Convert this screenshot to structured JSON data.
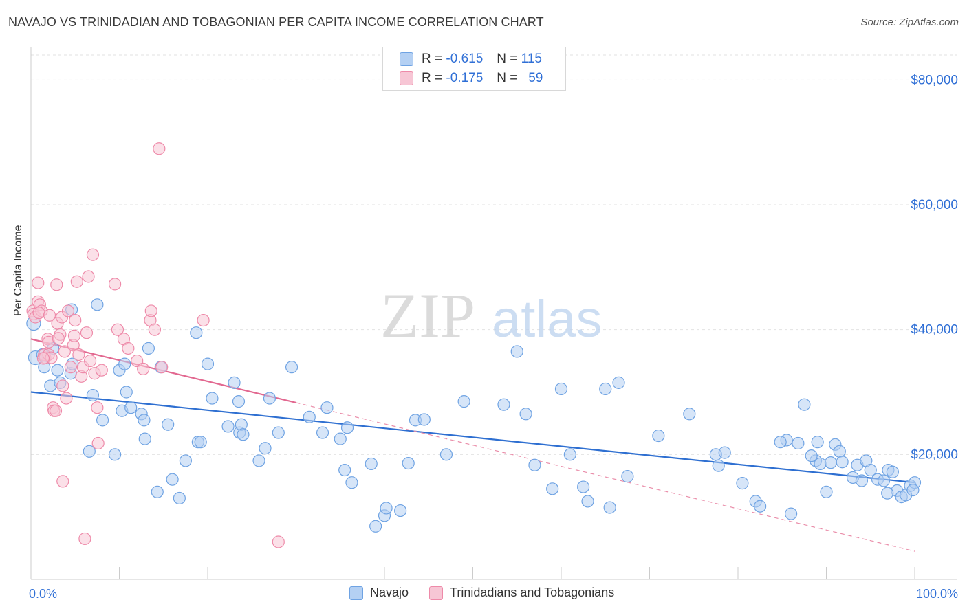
{
  "title": "NAVAJO VS TRINIDADIAN AND TOBAGONIAN PER CAPITA INCOME CORRELATION CHART",
  "source": "Source: ZipAtlas.com",
  "watermark": {
    "zip": "ZIP",
    "atlas": "atlas"
  },
  "legend": {
    "rows": [
      {
        "r_label": "R = ",
        "r_value": "-0.615",
        "n_label": "N = ",
        "n_value": "115",
        "color": "#a8c8f0"
      },
      {
        "r_label": "R = ",
        "r_value": "-0.175",
        "n_label": "N = ",
        "n_value": "59",
        "color": "#f5b8cb"
      }
    ]
  },
  "bottom_legend": {
    "navajo": "Navajo",
    "trinidadian": "Trinidadians and Tobagonians"
  },
  "chart_data": {
    "type": "scatter",
    "title": "NAVAJO VS TRINIDADIAN AND TOBAGONIAN PER CAPITA INCOME CORRELATION CHART",
    "xlabel": "",
    "ylabel": "Per Capita Income",
    "xlim": [
      0,
      100
    ],
    "ylim": [
      0,
      84000
    ],
    "x_tick_labels": [
      "0.0%",
      "100.0%"
    ],
    "y_ticks": [
      20000,
      40000,
      60000,
      80000
    ],
    "y_tick_labels": [
      "$20,000",
      "$40,000",
      "$60,000",
      "$80,000"
    ],
    "grid": true,
    "legend_placement": "top-center",
    "series": [
      {
        "name": "Navajo",
        "color": "#6fa3e3",
        "fill": "#b4d0f3",
        "trend": {
          "x": [
            0,
            100
          ],
          "y": [
            30000,
            15500
          ],
          "color": "#2e6fd1"
        },
        "points": [
          [
            0.3,
            41000
          ],
          [
            0.5,
            35500
          ],
          [
            1.3,
            36000
          ],
          [
            1.5,
            34000
          ],
          [
            2.2,
            31000
          ],
          [
            2.5,
            37000
          ],
          [
            3.0,
            33500
          ],
          [
            3.3,
            31500
          ],
          [
            4.5,
            33000
          ],
          [
            4.7,
            34500
          ],
          [
            4.6,
            43200
          ],
          [
            6.6,
            20500
          ],
          [
            7.0,
            29500
          ],
          [
            7.5,
            44000
          ],
          [
            8.1,
            25500
          ],
          [
            9.5,
            20000
          ],
          [
            10.0,
            33500
          ],
          [
            10.3,
            27000
          ],
          [
            10.6,
            34500
          ],
          [
            10.8,
            30000
          ],
          [
            11.3,
            27500
          ],
          [
            12.5,
            26500
          ],
          [
            12.8,
            25500
          ],
          [
            12.9,
            22500
          ],
          [
            13.3,
            37000
          ],
          [
            14.3,
            14000
          ],
          [
            14.7,
            34000
          ],
          [
            15.5,
            24800
          ],
          [
            16.0,
            16000
          ],
          [
            16.8,
            13000
          ],
          [
            17.5,
            19000
          ],
          [
            18.7,
            39500
          ],
          [
            18.9,
            22000
          ],
          [
            19.2,
            22000
          ],
          [
            20.0,
            34500
          ],
          [
            20.5,
            29000
          ],
          [
            22.3,
            24500
          ],
          [
            23.0,
            31500
          ],
          [
            23.5,
            28500
          ],
          [
            23.6,
            23500
          ],
          [
            23.8,
            24800
          ],
          [
            24.0,
            23200
          ],
          [
            25.8,
            19000
          ],
          [
            26.5,
            21000
          ],
          [
            27.0,
            29000
          ],
          [
            28.0,
            23500
          ],
          [
            29.5,
            34000
          ],
          [
            31.5,
            26000
          ],
          [
            33.5,
            27500
          ],
          [
            33.0,
            23500
          ],
          [
            35.0,
            22500
          ],
          [
            35.5,
            17500
          ],
          [
            35.8,
            24300
          ],
          [
            36.3,
            15500
          ],
          [
            38.5,
            18500
          ],
          [
            39.0,
            8500
          ],
          [
            40.0,
            10200
          ],
          [
            40.2,
            11400
          ],
          [
            41.8,
            11000
          ],
          [
            42.7,
            18600
          ],
          [
            43.5,
            25500
          ],
          [
            44.5,
            25600
          ],
          [
            47.0,
            20000
          ],
          [
            49.0,
            28500
          ],
          [
            53.5,
            28000
          ],
          [
            55.0,
            36500
          ],
          [
            56.0,
            26500
          ],
          [
            57.0,
            18300
          ],
          [
            59.0,
            14500
          ],
          [
            60.0,
            30500
          ],
          [
            61.0,
            20000
          ],
          [
            62.5,
            14800
          ],
          [
            63.0,
            12500
          ],
          [
            65.0,
            30500
          ],
          [
            65.5,
            11500
          ],
          [
            66.5,
            31500
          ],
          [
            67.5,
            16500
          ],
          [
            71.0,
            23000
          ],
          [
            74.5,
            26500
          ],
          [
            77.5,
            20000
          ],
          [
            77.8,
            18200
          ],
          [
            78.5,
            20300
          ],
          [
            80.5,
            15400
          ],
          [
            82.0,
            12500
          ],
          [
            82.5,
            11700
          ],
          [
            85.5,
            22300
          ],
          [
            86.0,
            10500
          ],
          [
            86.8,
            21800
          ],
          [
            87.5,
            28000
          ],
          [
            88.8,
            19000
          ],
          [
            89.0,
            22000
          ],
          [
            89.3,
            18500
          ],
          [
            90.0,
            14000
          ],
          [
            90.5,
            18700
          ],
          [
            91.0,
            21600
          ],
          [
            91.5,
            20500
          ],
          [
            91.8,
            18800
          ],
          [
            93.0,
            16300
          ],
          [
            93.5,
            18300
          ],
          [
            94.0,
            15800
          ],
          [
            94.5,
            19000
          ],
          [
            95.0,
            17500
          ],
          [
            95.8,
            16000
          ],
          [
            96.5,
            15800
          ],
          [
            97.0,
            17500
          ],
          [
            97.5,
            17200
          ],
          [
            98.0,
            14200
          ],
          [
            98.5,
            13200
          ],
          [
            99.0,
            13500
          ],
          [
            99.5,
            15000
          ],
          [
            100.0,
            15500
          ],
          [
            99.8,
            14300
          ],
          [
            96.9,
            13800
          ],
          [
            88.3,
            19800
          ],
          [
            84.8,
            22000
          ]
        ]
      },
      {
        "name": "Trinidadians and Tobagonians",
        "color": "#ee8aa9",
        "fill": "#f7c6d5",
        "trend": {
          "x": [
            0,
            30
          ],
          "y": [
            38500,
            28300
          ],
          "color": "#e26890"
        },
        "trend_dashed": {
          "x": [
            30,
            100
          ],
          "y": [
            28300,
            4500
          ],
          "color": "#ea8eaa"
        },
        "points": [
          [
            0.2,
            43000
          ],
          [
            0.3,
            42500
          ],
          [
            0.5,
            42000
          ],
          [
            0.8,
            44500
          ],
          [
            0.8,
            47500
          ],
          [
            1.0,
            44000
          ],
          [
            1.2,
            43000
          ],
          [
            1.5,
            36000
          ],
          [
            1.6,
            35500
          ],
          [
            1.9,
            38500
          ],
          [
            2.0,
            38000
          ],
          [
            2.0,
            36000
          ],
          [
            2.3,
            35500
          ],
          [
            2.5,
            27500
          ],
          [
            2.6,
            27000
          ],
          [
            2.8,
            27000
          ],
          [
            2.9,
            47200
          ],
          [
            3.0,
            41000
          ],
          [
            3.3,
            39200
          ],
          [
            3.5,
            42000
          ],
          [
            3.6,
            31000
          ],
          [
            3.6,
            15700
          ],
          [
            3.8,
            36500
          ],
          [
            4.0,
            29000
          ],
          [
            4.2,
            43000
          ],
          [
            4.5,
            34000
          ],
          [
            4.8,
            37500
          ],
          [
            5.0,
            41500
          ],
          [
            5.2,
            47700
          ],
          [
            5.4,
            36000
          ],
          [
            5.7,
            32500
          ],
          [
            5.9,
            34000
          ],
          [
            6.1,
            6500
          ],
          [
            6.3,
            39500
          ],
          [
            6.5,
            48500
          ],
          [
            6.7,
            35000
          ],
          [
            7.0,
            52000
          ],
          [
            7.2,
            33000
          ],
          [
            7.5,
            27500
          ],
          [
            7.6,
            21800
          ],
          [
            8.0,
            33500
          ],
          [
            9.5,
            47300
          ],
          [
            9.8,
            40000
          ],
          [
            10.5,
            38500
          ],
          [
            11.0,
            37000
          ],
          [
            12.0,
            35000
          ],
          [
            12.7,
            33700
          ],
          [
            13.5,
            41500
          ],
          [
            13.6,
            43000
          ],
          [
            14.0,
            40000
          ],
          [
            14.5,
            69000
          ],
          [
            14.8,
            34000
          ],
          [
            19.5,
            41500
          ],
          [
            28.0,
            6000
          ],
          [
            0.9,
            42700
          ],
          [
            1.4,
            35400
          ],
          [
            2.1,
            42300
          ],
          [
            3.1,
            38600
          ],
          [
            4.9,
            39000
          ]
        ]
      }
    ]
  }
}
